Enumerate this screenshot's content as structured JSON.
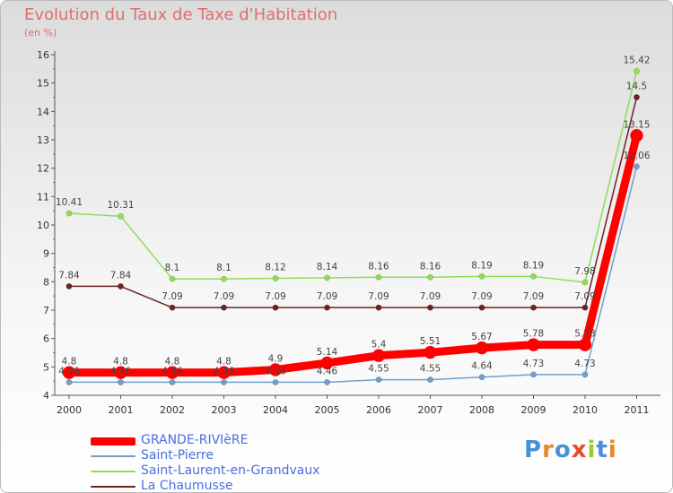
{
  "header": {
    "title": "Evolution du Taux de Taxe d'Habitation",
    "unit": "(en %)"
  },
  "branding": {
    "logo_text": "Proxiti"
  },
  "chart_data": {
    "type": "line",
    "title": "Evolution du Taux de Taxe d'Habitation",
    "ylabel": "(en %)",
    "xlabel": "",
    "ylim": [
      4,
      16
    ],
    "yticks": [
      4,
      5,
      6,
      7,
      8,
      9,
      10,
      11,
      12,
      13,
      14,
      15,
      16
    ],
    "categories": [
      "2000",
      "2001",
      "2002",
      "2003",
      "2004",
      "2005",
      "2006",
      "2007",
      "2008",
      "2009",
      "2010",
      "2011"
    ],
    "grid": false,
    "legend_position": "bottom-left",
    "series": [
      {
        "name": "GRANDE-RIVIèRE",
        "color": "#ff0000",
        "emphasis": true,
        "values": [
          4.8,
          4.8,
          4.8,
          4.8,
          4.9,
          5.14,
          5.4,
          5.51,
          5.67,
          5.78,
          5.78,
          13.15
        ],
        "labels": [
          "4.8",
          "4.8",
          "4.8",
          "4.8",
          "4.9",
          "5.14",
          "5.4",
          "5.51",
          "5.67",
          "5.78",
          "5.78",
          "13.15"
        ]
      },
      {
        "name": "Saint-Pierre",
        "color": "#6fa0cc",
        "emphasis": false,
        "values": [
          4.46,
          4.46,
          4.46,
          4.46,
          4.46,
          4.46,
          4.55,
          4.55,
          4.64,
          4.73,
          4.73,
          12.06
        ],
        "labels": [
          "4.46",
          "4.46",
          "4.46",
          "4.46",
          "4.46",
          "4.46",
          "4.55",
          "4.55",
          "4.64",
          "4.73",
          "4.73",
          "12.06"
        ]
      },
      {
        "name": "Saint-Laurent-en-Grandvaux",
        "color": "#8fdc55",
        "emphasis": false,
        "values": [
          10.41,
          10.31,
          8.1,
          8.1,
          8.12,
          8.14,
          8.16,
          8.16,
          8.19,
          8.19,
          7.98,
          15.42
        ],
        "labels": [
          "10.41",
          "10.31",
          "8.1",
          "8.1",
          "8.12",
          "8.14",
          "8.16",
          "8.16",
          "8.19",
          "8.19",
          "7.98",
          "15.42"
        ]
      },
      {
        "name": "La Chaumusse",
        "color": "#6b2222",
        "emphasis": false,
        "values": [
          7.84,
          7.84,
          7.09,
          7.09,
          7.09,
          7.09,
          7.09,
          7.09,
          7.09,
          7.09,
          7.09,
          14.5
        ],
        "labels": [
          "7.84",
          "7.84",
          "7.09",
          "7.09",
          "7.09",
          "7.09",
          "7.09",
          "7.09",
          "7.09",
          "7.09",
          "7.09",
          "14.5"
        ]
      }
    ]
  }
}
